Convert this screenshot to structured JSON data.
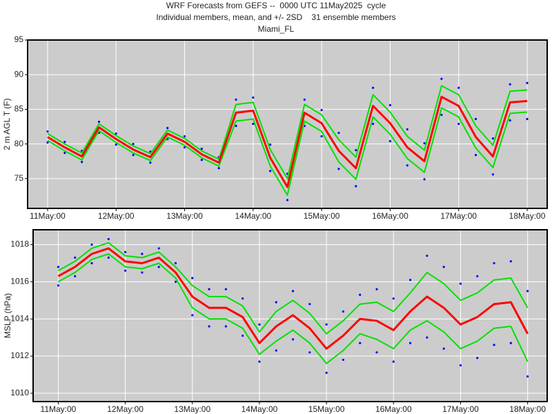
{
  "header": [
    "WRF Forecasts from GEFS --  0000 UTC 11May2025  cycle",
    "Individual members, mean, and +/- 2SD    31 ensemble members",
    "Miami_FL"
  ],
  "chart_data": [
    {
      "type": "line",
      "y_label": "2 m AGL T (F)",
      "x": [
        0,
        6,
        12,
        18,
        24,
        30,
        36,
        42,
        48,
        54,
        60,
        66,
        72,
        78,
        84,
        90,
        96,
        102,
        108,
        114,
        120,
        126,
        132,
        138,
        144,
        150,
        156,
        162,
        168
      ],
      "xlim": [
        -7,
        175
      ],
      "xticks": [
        {
          "value": 0,
          "label": "11May:00"
        },
        {
          "value": 24,
          "label": "12May:00"
        },
        {
          "value": 48,
          "label": "13May:00"
        },
        {
          "value": 72,
          "label": "14May:00"
        },
        {
          "value": 96,
          "label": "15May:00"
        },
        {
          "value": 120,
          "label": "16May:00"
        },
        {
          "value": 144,
          "label": "17May:00"
        },
        {
          "value": 168,
          "label": "18May:00"
        }
      ],
      "ylim": [
        70.7,
        95
      ],
      "yticks": [
        75,
        80,
        85,
        90,
        95
      ],
      "grid": true,
      "series": [
        {
          "style": "dots",
          "color": "#0000ff",
          "values": [
            81.8,
            80.3,
            79,
            83.2,
            81.5,
            80,
            78.9,
            82.3,
            81.1,
            79.3,
            78.1,
            86.4,
            86.7,
            79.9,
            75.7,
            86.4,
            84.9,
            81.6,
            79.1,
            88.1,
            85.6,
            82.1,
            80.1,
            89.4,
            88.1,
            83.6,
            80.8,
            88.6,
            88.8
          ]
        },
        {
          "style": "dots",
          "color": "#0000ff",
          "values": [
            80.2,
            78.7,
            77.4,
            81.6,
            79.9,
            78.4,
            77.3,
            80.7,
            79.5,
            77.7,
            76.5,
            82.6,
            82.9,
            76.1,
            71.9,
            82.6,
            81.1,
            76.4,
            73.9,
            82.9,
            80.4,
            76.9,
            74.9,
            84.2,
            82.9,
            78.4,
            75.6,
            83.4,
            83.6
          ]
        },
        {
          "style": "line",
          "color": "#00e000",
          "values": [
            80.5,
            79,
            77.7,
            81.9,
            80.2,
            78.7,
            77.6,
            81,
            79.8,
            78,
            76.8,
            83.3,
            83.6,
            76.8,
            72.6,
            83.3,
            81.8,
            77.4,
            74.9,
            83.9,
            81.4,
            77.9,
            75.9,
            85.2,
            83.9,
            79.4,
            76.6,
            84.4,
            84.6
          ]
        },
        {
          "style": "line",
          "color": "#00e000",
          "values": [
            81.5,
            80,
            78.7,
            82.9,
            81.2,
            79.7,
            78.6,
            82,
            80.8,
            79,
            77.8,
            85.7,
            86,
            79.2,
            75,
            85.7,
            84.2,
            80.6,
            78.1,
            87.1,
            84.6,
            81.1,
            79.1,
            88.4,
            87.1,
            82.6,
            79.8,
            87.6,
            87.8
          ]
        },
        {
          "style": "line",
          "color": "#ff0000",
          "width": 3,
          "values": [
            81,
            79.5,
            78.2,
            82.4,
            80.7,
            79.2,
            78.1,
            81.5,
            80.3,
            78.5,
            77.3,
            84.5,
            84.8,
            78,
            73.8,
            84.5,
            83,
            79,
            76.5,
            85.5,
            83,
            79.5,
            77.5,
            86.8,
            85.5,
            81,
            78.2,
            86,
            86.2
          ]
        }
      ]
    },
    {
      "type": "line",
      "y_label": "MSLP (hPa)",
      "x": [
        0,
        6,
        12,
        18,
        24,
        30,
        36,
        42,
        48,
        54,
        60,
        66,
        72,
        78,
        84,
        90,
        96,
        102,
        108,
        114,
        120,
        126,
        132,
        138,
        144,
        150,
        156,
        162,
        168
      ],
      "xlim": [
        -9,
        175
      ],
      "xticks": [
        {
          "value": 0,
          "label": "11May:00"
        },
        {
          "value": 24,
          "label": "12May:00"
        },
        {
          "value": 48,
          "label": "13May:00"
        },
        {
          "value": 72,
          "label": "14May:00"
        },
        {
          "value": 96,
          "label": "15May:00"
        },
        {
          "value": 120,
          "label": "16May:00"
        },
        {
          "value": 144,
          "label": "17May:00"
        },
        {
          "value": 168,
          "label": "18May:00"
        }
      ],
      "ylim": [
        1009.55,
        1018.8
      ],
      "yticks": [
        1010,
        1012,
        1014,
        1016,
        1018
      ],
      "grid": true,
      "series": [
        {
          "style": "dots",
          "color": "#0000ff",
          "values": [
            1016.8,
            1017.3,
            1018.0,
            1018.3,
            1017.6,
            1017.5,
            1017.8,
            1017.0,
            1016.2,
            1015.6,
            1015.6,
            1015.1,
            1013.7,
            1014.9,
            1015.5,
            1014.8,
            1013.7,
            1014.4,
            1015.3,
            1015.6,
            1015.1,
            1016.1,
            1017.4,
            1016.8,
            1015.9,
            1016.3,
            1017.0,
            1017.1,
            1015.5
          ]
        },
        {
          "style": "dots",
          "color": "#0000ff",
          "values": [
            1015.8,
            1016.3,
            1017.0,
            1017.3,
            1016.6,
            1016.5,
            1016.8,
            1016.0,
            1014.2,
            1013.6,
            1013.6,
            1013.1,
            1011.7,
            1012.3,
            1012.9,
            1012.2,
            1011.1,
            1011.8,
            1012.7,
            1012.2,
            1011.7,
            1012.7,
            1013.0,
            1012.4,
            1011.5,
            1011.9,
            1012.6,
            1012.7,
            1010.9
          ]
        },
        {
          "style": "line",
          "color": "#00e000",
          "values": [
            1016.0,
            1016.5,
            1017.2,
            1017.5,
            1016.8,
            1016.7,
            1017.0,
            1016.2,
            1014.6,
            1014.0,
            1014.0,
            1013.5,
            1012.1,
            1012.8,
            1013.4,
            1012.7,
            1011.6,
            1012.3,
            1013.2,
            1012.9,
            1012.4,
            1013.4,
            1013.9,
            1013.3,
            1012.4,
            1012.8,
            1013.5,
            1013.6,
            1011.7
          ]
        },
        {
          "style": "line",
          "color": "#00e000",
          "values": [
            1016.6,
            1017.1,
            1017.8,
            1018.1,
            1017.4,
            1017.3,
            1017.6,
            1016.8,
            1015.8,
            1015.2,
            1015.2,
            1014.7,
            1013.3,
            1014.4,
            1015.0,
            1014.3,
            1013.2,
            1013.9,
            1014.8,
            1014.9,
            1014.4,
            1015.4,
            1016.5,
            1015.9,
            1015.0,
            1015.4,
            1016.1,
            1016.2,
            1014.6
          ]
        },
        {
          "style": "line",
          "color": "#ff0000",
          "width": 3,
          "values": [
            1016.3,
            1016.8,
            1017.5,
            1017.8,
            1017.1,
            1017.0,
            1017.3,
            1016.5,
            1015.2,
            1014.6,
            1014.6,
            1014.1,
            1012.7,
            1013.6,
            1014.2,
            1013.5,
            1012.4,
            1013.1,
            1014.0,
            1013.9,
            1013.4,
            1014.4,
            1015.2,
            1014.6,
            1013.7,
            1014.1,
            1014.8,
            1014.9,
            1013.2
          ]
        }
      ]
    }
  ]
}
